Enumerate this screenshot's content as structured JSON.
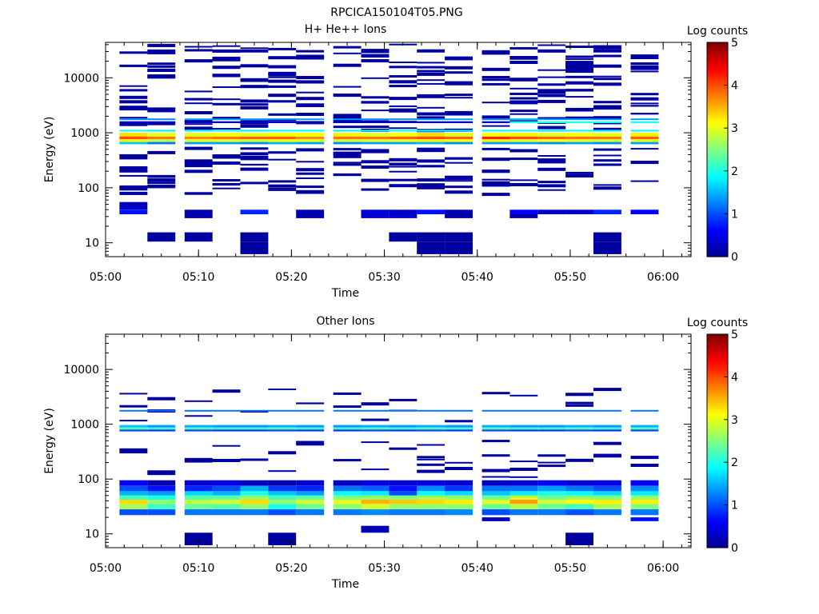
{
  "figure_title": "RPCICA150104T05.PNG",
  "colorscale": [
    "#00008f",
    "#0000ff",
    "#0080ff",
    "#00ffff",
    "#80ff80",
    "#ffff00",
    "#ff8000",
    "#ff0000",
    "#800000"
  ],
  "chart_data": [
    {
      "type": "heatmap",
      "title": "H+ He++ Ions",
      "xlabel": "Time",
      "ylabel": "Energy (eV)",
      "colorbar_label": "Log counts",
      "x_ticks": [
        "05:00",
        "05:10",
        "05:20",
        "05:30",
        "05:40",
        "05:50",
        "06:00"
      ],
      "y_ticks": [
        "10",
        "100",
        "1000",
        "10000"
      ],
      "colorbar_ticks": [
        "0",
        "1",
        "2",
        "3",
        "4",
        "5"
      ],
      "xlim": [
        "05:00",
        "06:03"
      ],
      "ylim": [
        5.6,
        44000
      ],
      "y_scale": "log",
      "clim": [
        0,
        5
      ],
      "time_bins": [
        "05:03",
        "05:06",
        "05:10",
        "05:13",
        "05:16",
        "05:19",
        "05:22",
        "05:26",
        "05:29",
        "05:32",
        "05:35",
        "05:38",
        "05:42",
        "05:45",
        "05:48",
        "05:51",
        "05:54",
        "05:58"
      ],
      "bands": [
        {
          "e_lo": 850,
          "e_hi": 1000,
          "values": [
            3.3,
            3.0,
            3.0,
            3.1,
            3.0,
            3.1,
            3.1,
            3.2,
            3.0,
            3.1,
            3.3,
            3.0,
            3.1,
            3.2,
            3.0,
            3.1,
            3.0,
            3.2
          ]
        },
        {
          "e_lo": 760,
          "e_hi": 850,
          "values": [
            4.0,
            3.8,
            3.7,
            3.8,
            3.9,
            3.9,
            3.7,
            3.8,
            3.8,
            3.9,
            4.0,
            3.9,
            4.2,
            4.0,
            3.9,
            3.8,
            3.8,
            3.9
          ]
        },
        {
          "e_lo": 680,
          "e_hi": 760,
          "values": [
            3.2,
            2.8,
            3.0,
            3.0,
            2.9,
            3.1,
            3.0,
            2.9,
            3.0,
            3.0,
            3.2,
            3.1,
            3.2,
            3.0,
            3.1,
            3.0,
            2.9,
            3.0
          ]
        },
        {
          "e_lo": 620,
          "e_hi": 680,
          "values": [
            1.6,
            1.2,
            1.4,
            1.4,
            1.3,
            1.5,
            1.4,
            1.3,
            1.4,
            1.4,
            1.5,
            1.3,
            1.4,
            1.4,
            1.3,
            1.4,
            1.3,
            1.4
          ]
        },
        {
          "e_lo": 1050,
          "e_hi": 1130,
          "values": [
            2.0,
            1.8,
            1.9,
            1.9,
            1.8,
            1.9,
            1.9,
            1.8,
            1.9,
            1.9,
            1.9,
            1.8,
            1.9,
            1.9,
            1.8,
            1.9,
            1.8,
            1.9
          ]
        },
        {
          "e_lo": 1700,
          "e_hi": 1820,
          "values": [
            1.3,
            1.3,
            1.4,
            1.4,
            1.3,
            1.3,
            1.4,
            1.4,
            1.3,
            1.3,
            1.4,
            1.4,
            1.3,
            1.5,
            1.4,
            1.4,
            1.3,
            1.4
          ]
        },
        {
          "e_lo": 1500,
          "e_hi": 1620,
          "values": [
            0.3,
            0.3,
            0.3,
            0.3,
            0.3,
            0.3,
            0.3,
            0.3,
            0.3,
            0.3,
            0.3,
            0.3,
            0.3,
            2.0,
            2.0,
            2.0,
            2.0,
            2.0
          ]
        },
        {
          "e_lo": 40,
          "e_hi": 55,
          "values": [
            0.3,
            null,
            null,
            null,
            null,
            null,
            null,
            null,
            null,
            null,
            null,
            null,
            null,
            null,
            null,
            null,
            null,
            null
          ]
        },
        {
          "e_lo": 33,
          "e_hi": 40,
          "values": [
            0.7,
            null,
            0.2,
            null,
            0.8,
            null,
            0.2,
            null,
            0.4,
            0.3,
            0.7,
            0.2,
            null,
            0.6,
            0.3,
            0.3,
            0.8,
            0.6
          ]
        },
        {
          "e_lo": 28,
          "e_hi": 33,
          "values": [
            null,
            null,
            0.2,
            null,
            null,
            null,
            0.2,
            null,
            0.4,
            0.4,
            null,
            0.2,
            null,
            0.2,
            null,
            null,
            null,
            null
          ]
        },
        {
          "e_lo": 10.5,
          "e_hi": 15.5,
          "values": [
            null,
            0.1,
            0.1,
            null,
            0.1,
            null,
            null,
            null,
            null,
            0.1,
            0.1,
            0.1,
            null,
            null,
            null,
            null,
            0.1,
            null
          ]
        },
        {
          "e_lo": 6.2,
          "e_hi": 10.5,
          "values": [
            null,
            null,
            null,
            null,
            0.1,
            null,
            null,
            null,
            null,
            null,
            0.1,
            0.1,
            null,
            null,
            null,
            null,
            0.1,
            null
          ]
        }
      ],
      "sparse_counts": {
        "e_lo": 80,
        "e_hi": 42000,
        "value": 0.1
      }
    },
    {
      "type": "heatmap",
      "title": "Other Ions",
      "xlabel": "Time",
      "ylabel": "Energy (eV)",
      "colorbar_label": "Log counts",
      "x_ticks": [
        "05:00",
        "05:10",
        "05:20",
        "05:30",
        "05:40",
        "05:50",
        "06:00"
      ],
      "y_ticks": [
        "10",
        "100",
        "1000",
        "10000"
      ],
      "colorbar_ticks": [
        "0",
        "1",
        "2",
        "3",
        "4",
        "5"
      ],
      "xlim": [
        "05:00",
        "06:03"
      ],
      "ylim": [
        5.6,
        44000
      ],
      "y_scale": "log",
      "clim": [
        0,
        5
      ],
      "time_bins": [
        "05:03",
        "05:06",
        "05:10",
        "05:13",
        "05:16",
        "05:19",
        "05:22",
        "05:26",
        "05:29",
        "05:32",
        "05:35",
        "05:38",
        "05:42",
        "05:45",
        "05:48",
        "05:51",
        "05:54",
        "05:58"
      ],
      "bands": [
        {
          "e_lo": 1700,
          "e_hi": 1820,
          "values": [
            1.2,
            1.2,
            1.2,
            1.2,
            1.2,
            1.2,
            1.2,
            1.2,
            1.2,
            1.2,
            1.2,
            1.2,
            1.2,
            1.2,
            1.2,
            1.2,
            1.2,
            1.2
          ]
        },
        {
          "e_lo": 870,
          "e_hi": 970,
          "values": [
            1.6,
            1.4,
            1.5,
            1.4,
            1.4,
            1.5,
            1.4,
            1.4,
            1.5,
            1.4,
            1.5,
            1.4,
            1.5,
            1.4,
            1.4,
            1.5,
            1.4,
            1.5
          ]
        },
        {
          "e_lo": 800,
          "e_hi": 870,
          "values": [
            2.3,
            2.2,
            2.3,
            2.2,
            2.2,
            2.3,
            2.2,
            2.2,
            2.3,
            2.2,
            2.3,
            2.2,
            2.3,
            2.2,
            2.2,
            2.3,
            2.2,
            2.3
          ]
        },
        {
          "e_lo": 740,
          "e_hi": 800,
          "values": [
            1.0,
            0.9,
            1.0,
            0.9,
            0.9,
            1.0,
            0.9,
            0.9,
            1.0,
            0.9,
            1.0,
            0.9,
            1.0,
            0.9,
            0.9,
            1.0,
            0.9,
            1.0
          ]
        },
        {
          "e_lo": 75,
          "e_hi": 95,
          "values": [
            0.6,
            0.2,
            0.4,
            0.5,
            0.3,
            0.2,
            0.4,
            0.3,
            0.5,
            0.4,
            0.5,
            0.4,
            0.3,
            0.4,
            0.6,
            0.4,
            0.5,
            0.6
          ]
        },
        {
          "e_lo": 60,
          "e_hi": 75,
          "values": [
            1.0,
            0.7,
            0.8,
            1.0,
            1.5,
            0.9,
            0.8,
            1.2,
            1.1,
            0.7,
            1.3,
            0.9,
            1.2,
            1.2,
            1.4,
            1.2,
            1.0,
            1.3
          ]
        },
        {
          "e_lo": 50,
          "e_hi": 60,
          "values": [
            1.5,
            1.4,
            1.7,
            1.5,
            2.0,
            1.6,
            1.4,
            1.9,
            1.8,
            1.0,
            1.9,
            1.7,
            1.6,
            1.8,
            2.0,
            1.9,
            1.7,
            1.8
          ]
        },
        {
          "e_lo": 42,
          "e_hi": 50,
          "values": [
            2.2,
            2.0,
            2.3,
            2.3,
            2.6,
            2.2,
            2.3,
            2.5,
            2.6,
            2.5,
            2.7,
            2.6,
            2.4,
            2.9,
            2.4,
            2.6,
            2.5,
            2.6
          ]
        },
        {
          "e_lo": 35,
          "e_hi": 42,
          "values": [
            3.3,
            2.6,
            2.8,
            2.9,
            3.3,
            2.6,
            2.9,
            3.0,
            3.5,
            3.4,
            3.3,
            3.2,
            3.0,
            3.6,
            2.9,
            3.1,
            3.2,
            3.2
          ]
        },
        {
          "e_lo": 28,
          "e_hi": 35,
          "values": [
            2.7,
            2.2,
            2.4,
            2.3,
            2.6,
            2.0,
            2.4,
            2.6,
            2.9,
            2.6,
            2.6,
            2.6,
            2.4,
            2.8,
            2.4,
            2.2,
            2.7,
            2.5
          ]
        },
        {
          "e_lo": 22,
          "e_hi": 28,
          "values": [
            1.0,
            1.0,
            1.2,
            1.2,
            1.2,
            1.0,
            1.2,
            1.2,
            1.3,
            1.2,
            1.2,
            1.3,
            1.0,
            1.2,
            1.2,
            1.0,
            1.2,
            1.2
          ]
        },
        {
          "e_lo": 17,
          "e_hi": 20,
          "values": [
            null,
            null,
            null,
            null,
            null,
            null,
            null,
            null,
            null,
            null,
            null,
            null,
            0.3,
            null,
            null,
            null,
            null,
            0.7
          ]
        },
        {
          "e_lo": 10.5,
          "e_hi": 14,
          "values": [
            null,
            null,
            null,
            null,
            null,
            null,
            null,
            null,
            0.2,
            null,
            null,
            null,
            null,
            null,
            null,
            null,
            null,
            null
          ]
        },
        {
          "e_lo": 6.2,
          "e_hi": 10.5,
          "values": [
            null,
            null,
            0.1,
            null,
            null,
            0.1,
            null,
            null,
            null,
            null,
            null,
            null,
            null,
            null,
            null,
            0.1,
            null,
            null
          ]
        }
      ],
      "sparse_counts": {
        "e_lo": 100,
        "e_hi": 5000,
        "value": 0.1
      }
    }
  ]
}
